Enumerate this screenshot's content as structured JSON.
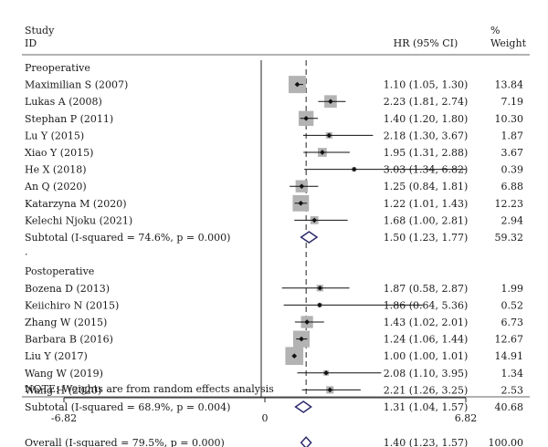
{
  "header": {
    "study_line1": "Study",
    "study_line2": "ID",
    "hr_label": "HR (95% CI)",
    "weight_line1": "%",
    "weight_line2": "Weight"
  },
  "note": "NOTE: Weights are from random effects analysis",
  "chart_data": {
    "type": "forest",
    "xlim": [
      -6.82,
      6.82
    ],
    "xticks": [
      "-6.82",
      "0",
      "6.82"
    ],
    "reference_line": 0,
    "pooled_line": 1.4,
    "groups": [
      {
        "name": "Preoperative",
        "studies": [
          {
            "id": "Maximilian S (2007)",
            "hr": 1.1,
            "lo": 1.05,
            "hi": 1.3,
            "hr_text": "1.10 (1.05, 1.30)",
            "weight": "13.84"
          },
          {
            "id": "Lukas A (2008)",
            "hr": 2.23,
            "lo": 1.81,
            "hi": 2.74,
            "hr_text": "2.23 (1.81, 2.74)",
            "weight": "7.19"
          },
          {
            "id": "Stephan P (2011)",
            "hr": 1.4,
            "lo": 1.2,
            "hi": 1.8,
            "hr_text": "1.40 (1.20, 1.80)",
            "weight": "10.30"
          },
          {
            "id": "Lu Y (2015)",
            "hr": 2.18,
            "lo": 1.3,
            "hi": 3.67,
            "hr_text": "2.18 (1.30, 3.67)",
            "weight": "1.87"
          },
          {
            "id": "Xiao Y (2015)",
            "hr": 1.95,
            "lo": 1.31,
            "hi": 2.88,
            "hr_text": "1.95 (1.31, 2.88)",
            "weight": "3.67"
          },
          {
            "id": "He X (2018)",
            "hr": 3.03,
            "lo": 1.34,
            "hi": 6.82,
            "hr_text": "3.03 (1.34, 6.82)",
            "weight": "0.39"
          },
          {
            "id": "An Q (2020)",
            "hr": 1.25,
            "lo": 0.84,
            "hi": 1.81,
            "hr_text": "1.25 (0.84, 1.81)",
            "weight": "6.88"
          },
          {
            "id": "Katarzyna M (2020)",
            "hr": 1.22,
            "lo": 1.01,
            "hi": 1.43,
            "hr_text": "1.22 (1.01, 1.43)",
            "weight": "12.23"
          },
          {
            "id": "Kelechi Njoku (2021)",
            "hr": 1.68,
            "lo": 1.0,
            "hi": 2.81,
            "hr_text": "1.68 (1.00, 2.81)",
            "weight": "2.94"
          }
        ],
        "subtotal": {
          "label": "Subtotal (I-squared = 74.6%, p = 0.000)",
          "hr": 1.5,
          "lo": 1.23,
          "hi": 1.77,
          "hr_text": "1.50 (1.23, 1.77)",
          "weight": "59.32"
        }
      },
      {
        "name": "Postoperative",
        "studies": [
          {
            "id": "Bozena D (2013)",
            "hr": 1.87,
            "lo": 0.58,
            "hi": 2.87,
            "hr_text": "1.87 (0.58, 2.87)",
            "weight": "1.99"
          },
          {
            "id": "Keiichiro N (2015)",
            "hr": 1.86,
            "lo": 0.64,
            "hi": 5.36,
            "hr_text": "1.86 (0.64, 5.36)",
            "weight": "0.52"
          },
          {
            "id": "Zhang W (2015)",
            "hr": 1.43,
            "lo": 1.02,
            "hi": 2.01,
            "hr_text": "1.43 (1.02, 2.01)",
            "weight": "6.73"
          },
          {
            "id": "Barbara B (2016)",
            "hr": 1.24,
            "lo": 1.06,
            "hi": 1.44,
            "hr_text": "1.24 (1.06, 1.44)",
            "weight": "12.67"
          },
          {
            "id": "Liu Y (2017)",
            "hr": 1.0,
            "lo": 1.0,
            "hi": 1.01,
            "hr_text": "1.00 (1.00, 1.01)",
            "weight": "14.91"
          },
          {
            "id": "Wang W (2019)",
            "hr": 2.08,
            "lo": 1.1,
            "hi": 3.95,
            "hr_text": "2.08 (1.10, 3.95)",
            "weight": "1.34"
          },
          {
            "id": "Wang H (2020)",
            "hr": 2.21,
            "lo": 1.26,
            "hi": 3.25,
            "hr_text": "2.21 (1.26, 3.25)",
            "weight": "2.53"
          }
        ],
        "subtotal": {
          "label": "Subtotal (I-squared = 68.9%, p = 0.004)",
          "hr": 1.31,
          "lo": 1.04,
          "hi": 1.57,
          "hr_text": "1.31 (1.04, 1.57)",
          "weight": "40.68"
        }
      }
    ],
    "overall": {
      "label": "Overall (I-squared = 79.5%, p = 0.000)",
      "hr": 1.4,
      "lo": 1.23,
      "hi": 1.57,
      "hr_text": "1.40 (1.23, 1.57)",
      "weight": "100.00"
    }
  }
}
